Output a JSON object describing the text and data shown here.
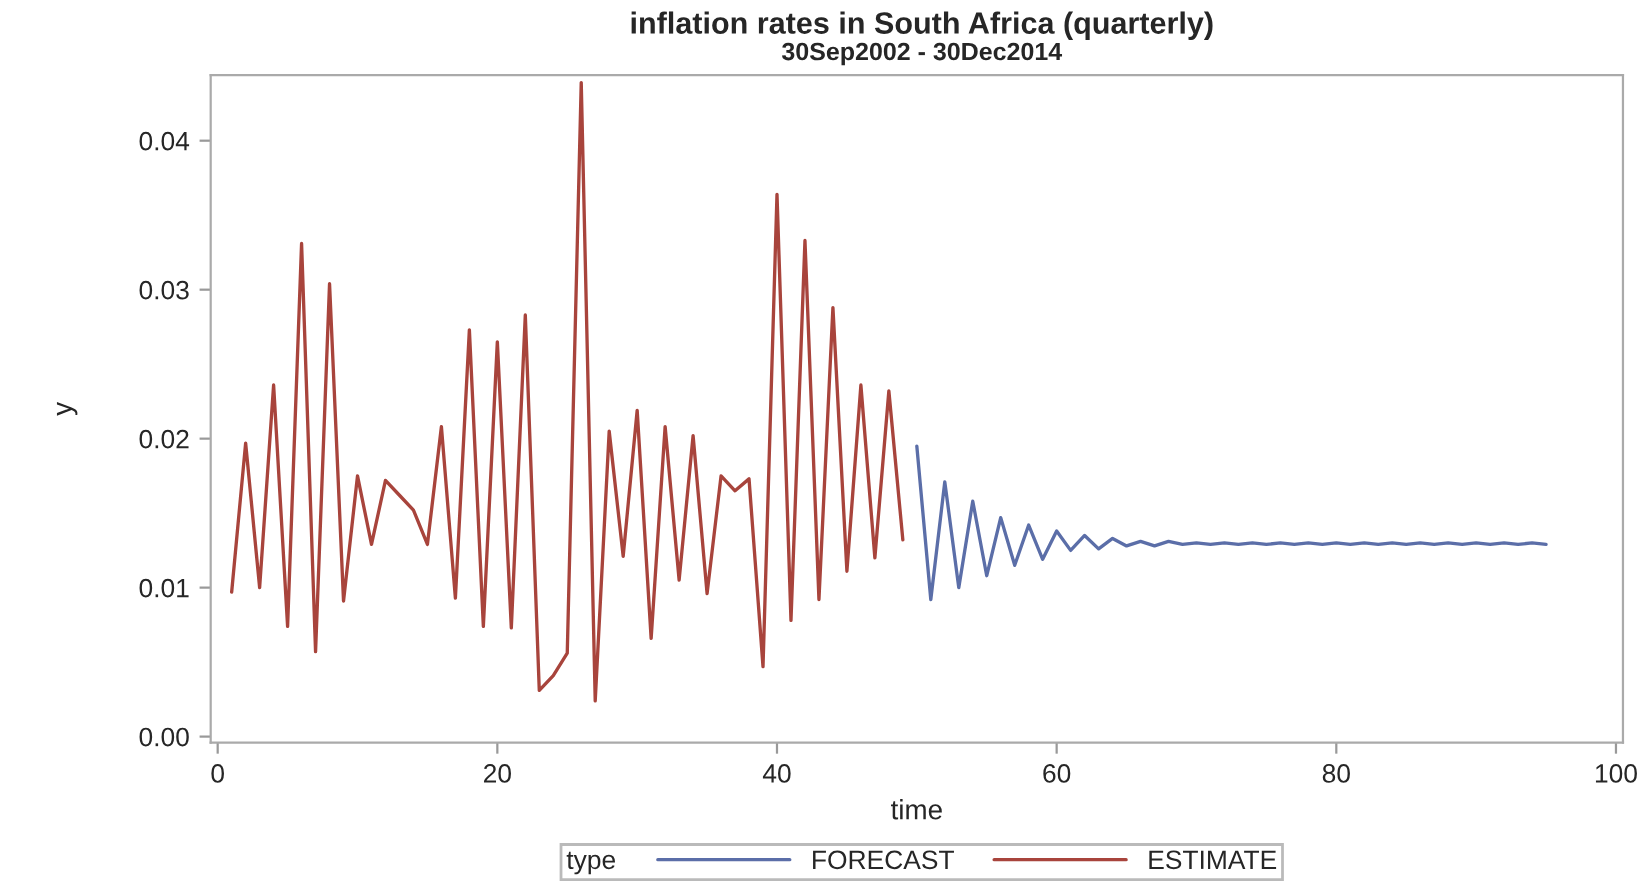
{
  "chart_data": {
    "type": "line",
    "title": "inflation rates in South Africa (quarterly)",
    "subtitle": "30Sep2002 - 30Dec2014",
    "xlabel": "time",
    "ylabel": "y",
    "legend_title": "type",
    "xlim": [
      -0.5,
      100.5
    ],
    "xticks": [
      0,
      20,
      40,
      60,
      80,
      100
    ],
    "ylim": [
      -0.0004,
      0.0444
    ],
    "yticks": [
      {
        "value": 0,
        "label": "0.00"
      },
      {
        "value": 0.01,
        "label": "0.01"
      },
      {
        "value": 0.02,
        "label": "0.02"
      },
      {
        "value": 0.03,
        "label": "0.03"
      },
      {
        "value": 0.04,
        "label": "0.04"
      }
    ],
    "grid": false,
    "legend": "bottom",
    "marker": "none",
    "line_style": "solid",
    "series": [
      {
        "name": "FORECAST",
        "color": "#5b6ea8",
        "x": [
          50,
          51,
          52,
          53,
          54,
          55,
          56,
          57,
          58,
          59,
          60,
          61,
          62,
          63,
          64,
          65,
          66,
          67,
          68,
          69,
          70,
          71,
          72,
          73,
          74,
          75,
          76,
          77,
          78,
          79,
          80,
          81,
          82,
          83,
          84,
          85,
          86,
          87,
          88,
          89,
          90,
          91,
          92,
          93,
          94,
          95
        ],
        "values": [
          0.0195,
          0.0092,
          0.0171,
          0.01,
          0.0158,
          0.0108,
          0.0147,
          0.0115,
          0.0142,
          0.0119,
          0.0138,
          0.0125,
          0.0135,
          0.0126,
          0.0133,
          0.0128,
          0.0131,
          0.0128,
          0.0131,
          0.0129,
          0.013,
          0.0129,
          0.013,
          0.0129,
          0.013,
          0.0129,
          0.013,
          0.0129,
          0.013,
          0.0129,
          0.013,
          0.0129,
          0.013,
          0.0129,
          0.013,
          0.0129,
          0.013,
          0.0129,
          0.013,
          0.0129,
          0.013,
          0.0129,
          0.013,
          0.0129,
          0.013,
          0.0129
        ]
      },
      {
        "name": "ESTIMATE",
        "color": "#a8443c",
        "x": [
          1,
          2,
          3,
          4,
          5,
          6,
          7,
          8,
          9,
          10,
          11,
          12,
          13,
          14,
          15,
          16,
          17,
          18,
          19,
          20,
          21,
          22,
          23,
          24,
          25,
          26,
          27,
          28,
          29,
          30,
          31,
          32,
          33,
          34,
          35,
          36,
          37,
          38,
          39,
          40,
          41,
          42,
          43,
          44,
          45,
          46,
          47,
          48,
          49
        ],
        "values": [
          0.0097,
          0.0197,
          0.01,
          0.0236,
          0.0074,
          0.0331,
          0.0057,
          0.0304,
          0.0091,
          0.0175,
          0.0129,
          0.0172,
          0.0162,
          0.0152,
          0.0129,
          0.0208,
          0.0093,
          0.0273,
          0.0074,
          0.0265,
          0.0073,
          0.0283,
          0.0031,
          0.0041,
          0.0056,
          0.0439,
          0.0024,
          0.0205,
          0.0121,
          0.0219,
          0.0066,
          0.0208,
          0.0105,
          0.0202,
          0.0096,
          0.0175,
          0.0165,
          0.0173,
          0.0047,
          0.0364,
          0.0078,
          0.0333,
          0.0092,
          0.0288,
          0.0111,
          0.0236,
          0.012,
          0.0232,
          0.0132
        ]
      }
    ]
  }
}
